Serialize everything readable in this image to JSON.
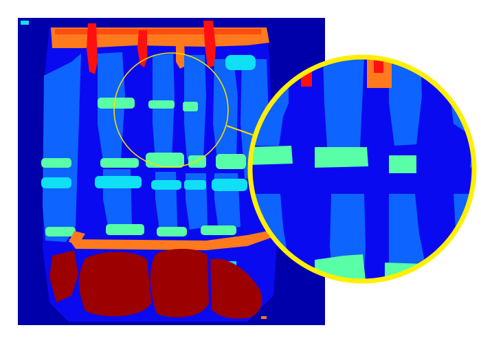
{
  "figure": {
    "kind": "pseudo-color depth map with magnified inset",
    "colormap": "jet",
    "colors": {
      "background": "#ffffff",
      "deep_blue": "#0000aa",
      "blue": "#0a0af0",
      "mid_blue": "#0e64ff",
      "cyan": "#10e0f4",
      "aqua_green": "#58ffa6",
      "orange": "#ff7a1c",
      "orange_red": "#ff4c10",
      "red": "#ff1010",
      "dark_red": "#9c0000",
      "highlight_ring": "#ffef00",
      "connector": "#f1e000"
    },
    "elements": [
      "depth-map-panel",
      "focus-circle",
      "connector-line",
      "magnified-inset"
    ]
  }
}
